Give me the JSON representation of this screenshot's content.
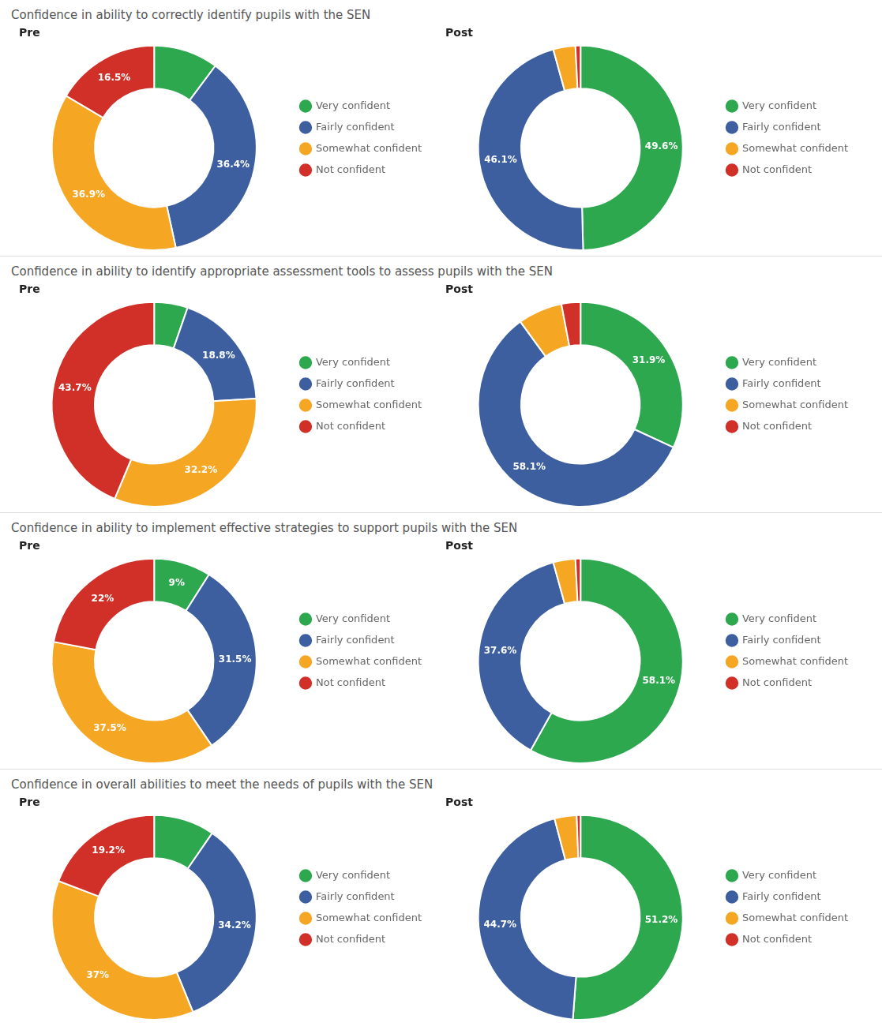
{
  "chart_data": [
    {
      "type": "doughnut",
      "title": "Confidence in ability to correctly identify pupils with the SEN",
      "subtitle": "Pre",
      "categories": [
        "Very confident",
        "Fairly confident",
        "Somewhat confident",
        "Not confident"
      ],
      "values": [
        10.2,
        36.4,
        36.9,
        16.5
      ],
      "value_labels": [
        null,
        "36.4%",
        "36.9%",
        "16.5%"
      ],
      "colors": [
        "#2da84f",
        "#3d5fa0",
        "#f5a623",
        "#d13028"
      ],
      "legend": "right",
      "data_labels": true
    },
    {
      "type": "doughnut",
      "subtitle": "Post",
      "categories": [
        "Very confident",
        "Fairly confident",
        "Somewhat confident",
        "Not confident"
      ],
      "values": [
        49.6,
        46.1,
        3.5,
        0.8
      ],
      "value_labels": [
        "49.6%",
        "46.1%",
        null,
        null
      ],
      "colors": [
        "#2da84f",
        "#3d5fa0",
        "#f5a623",
        "#d13028"
      ],
      "legend": "right",
      "data_labels": true
    },
    {
      "type": "doughnut",
      "title": "Confidence in ability to identify appropriate assessment tools to assess pupils with the SEN",
      "subtitle": "Pre",
      "categories": [
        "Very confident",
        "Fairly confident",
        "Somewhat confident",
        "Not confident"
      ],
      "values": [
        5.3,
        18.8,
        32.2,
        43.7
      ],
      "value_labels": [
        null,
        "18.8%",
        "32.2%",
        "43.7%"
      ],
      "colors": [
        "#2da84f",
        "#3d5fa0",
        "#f5a623",
        "#d13028"
      ],
      "legend": "right",
      "data_labels": true
    },
    {
      "type": "doughnut",
      "subtitle": "Post",
      "categories": [
        "Very confident",
        "Fairly confident",
        "Somewhat confident",
        "Not confident"
      ],
      "values": [
        31.9,
        58.1,
        7.0,
        3.0
      ],
      "value_labels": [
        "31.9%",
        "58.1%",
        null,
        null
      ],
      "colors": [
        "#2da84f",
        "#3d5fa0",
        "#f5a623",
        "#d13028"
      ],
      "legend": "right",
      "data_labels": true
    },
    {
      "type": "doughnut",
      "title": "Confidence in ability to implement effective strategies to support pupils with the SEN",
      "subtitle": "Pre",
      "categories": [
        "Very confident",
        "Fairly confident",
        "Somewhat confident",
        "Not confident"
      ],
      "values": [
        9.0,
        31.5,
        37.5,
        22.0
      ],
      "value_labels": [
        "9%",
        "31.5%",
        "37.5%",
        "22%"
      ],
      "colors": [
        "#2da84f",
        "#3d5fa0",
        "#f5a623",
        "#d13028"
      ],
      "legend": "right",
      "data_labels": true
    },
    {
      "type": "doughnut",
      "subtitle": "Post",
      "categories": [
        "Very confident",
        "Fairly confident",
        "Somewhat confident",
        "Not confident"
      ],
      "values": [
        58.1,
        37.6,
        3.5,
        0.8
      ],
      "value_labels": [
        "58.1%",
        "37.6%",
        null,
        null
      ],
      "colors": [
        "#2da84f",
        "#3d5fa0",
        "#f5a623",
        "#d13028"
      ],
      "legend": "right",
      "data_labels": true
    },
    {
      "type": "doughnut",
      "title": "Confidence in overall abilities to meet the needs of pupils with the SEN",
      "subtitle": "Pre",
      "categories": [
        "Very confident",
        "Fairly confident",
        "Somewhat confident",
        "Not confident"
      ],
      "values": [
        9.6,
        34.2,
        37.0,
        19.2
      ],
      "value_labels": [
        null,
        "34.2%",
        "37%",
        "19.2%"
      ],
      "colors": [
        "#2da84f",
        "#3d5fa0",
        "#f5a623",
        "#d13028"
      ],
      "legend": "right",
      "data_labels": true
    },
    {
      "type": "doughnut",
      "subtitle": "Post",
      "categories": [
        "Very confident",
        "Fairly confident",
        "Somewhat confident",
        "Not confident"
      ],
      "values": [
        51.2,
        44.7,
        3.5,
        0.6
      ],
      "value_labels": [
        "51.2%",
        "44.7%",
        null,
        null
      ],
      "colors": [
        "#2da84f",
        "#3d5fa0",
        "#f5a623",
        "#d13028"
      ],
      "legend": "right",
      "data_labels": true
    }
  ]
}
